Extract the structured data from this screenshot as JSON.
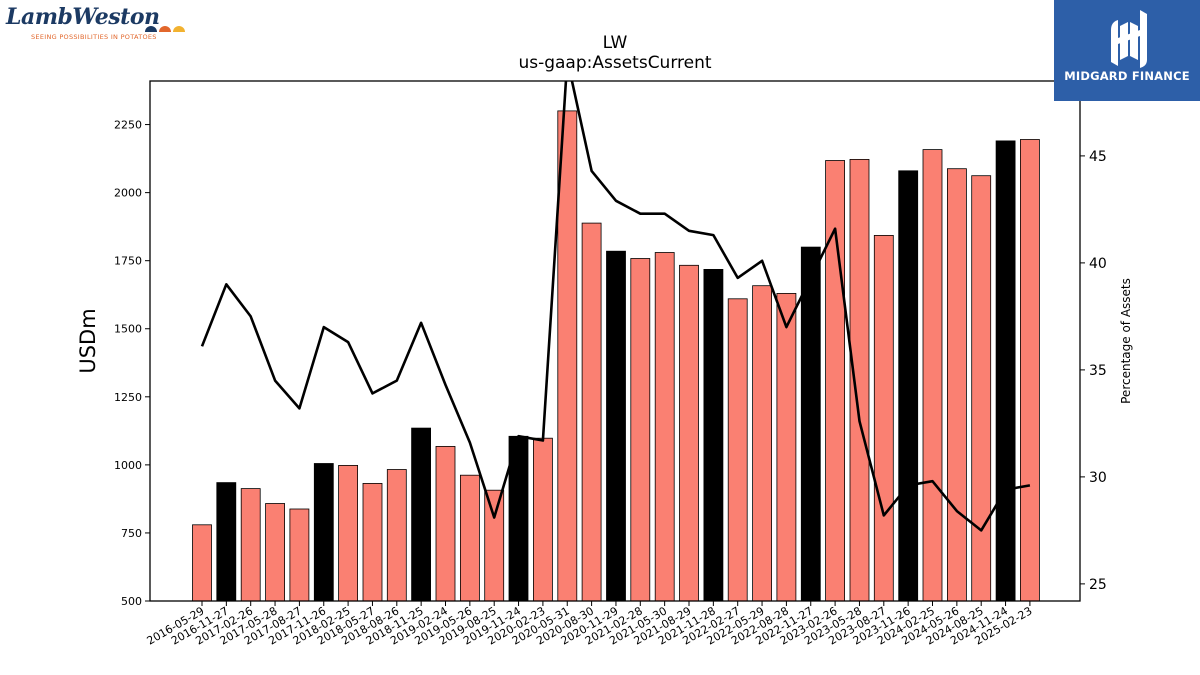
{
  "logos": {
    "lamb_weston": {
      "wordmark": "LambWeston",
      "tagline": "SEEING POSSIBILITIES IN POTATOES"
    },
    "midgard": {
      "name": "MIDGARD FINANCE"
    }
  },
  "colors": {
    "bar_default": "#fa8072",
    "bar_highlight": "#000000",
    "line": "#000000",
    "midgard_bg": "#2d5fa8"
  },
  "chart_data": {
    "type": "bar",
    "title": "LW",
    "subtitle": "us-gaap:AssetsCurrent",
    "ylabel": "USDm",
    "y2label": "Percentage of Assets",
    "ylim": [
      500,
      2410
    ],
    "y2lim": [
      24.2,
      48.5
    ],
    "yticks": [
      500,
      750,
      1000,
      1250,
      1500,
      1750,
      2000,
      2250
    ],
    "y2ticks": [
      25,
      30,
      35,
      40,
      45
    ],
    "categories": [
      "2016-05-29",
      "2016-11-27",
      "2017-02-26",
      "2017-05-28",
      "2017-08-27",
      "2017-11-26",
      "2018-02-25",
      "2018-05-27",
      "2018-08-26",
      "2018-11-25",
      "2019-02-24",
      "2019-05-26",
      "2019-08-25",
      "2019-11-24",
      "2020-02-23",
      "2020-05-31",
      "2020-08-30",
      "2020-11-29",
      "2021-02-28",
      "2021-05-30",
      "2021-08-29",
      "2021-11-28",
      "2022-02-27",
      "2022-05-29",
      "2022-08-28",
      "2022-11-27",
      "2023-02-26",
      "2023-05-28",
      "2023-08-27",
      "2023-11-26",
      "2024-02-25",
      "2024-05-26",
      "2024-08-25",
      "2024-11-24",
      "2025-02-23"
    ],
    "series": [
      {
        "kind": "bar",
        "values": [
          780,
          935,
          913,
          858,
          838,
          1005,
          998,
          932,
          983,
          1135,
          1068,
          962,
          907,
          1105,
          1098,
          2300,
          1888,
          1785,
          1758,
          1780,
          1733,
          1718,
          1610,
          1658,
          1630,
          1800,
          2118,
          2122,
          1843,
          2080,
          2158,
          2088,
          2062,
          2190,
          2195
        ],
        "highlight": [
          false,
          true,
          false,
          false,
          false,
          true,
          false,
          false,
          false,
          true,
          false,
          false,
          false,
          true,
          false,
          false,
          false,
          true,
          false,
          false,
          false,
          true,
          false,
          false,
          false,
          true,
          false,
          false,
          false,
          true,
          false,
          false,
          false,
          true,
          false
        ]
      },
      {
        "kind": "line",
        "axis": "right",
        "values": [
          36.1,
          39.0,
          37.5,
          34.5,
          33.2,
          37.0,
          36.3,
          33.9,
          34.5,
          37.2,
          34.3,
          31.6,
          28.1,
          31.9,
          31.7,
          49.5,
          44.3,
          42.9,
          42.3,
          42.3,
          41.5,
          41.3,
          39.3,
          40.1,
          37.0,
          39.3,
          41.6,
          32.6,
          28.2,
          29.6,
          29.8,
          28.4,
          27.5,
          29.4,
          29.6
        ]
      }
    ]
  }
}
